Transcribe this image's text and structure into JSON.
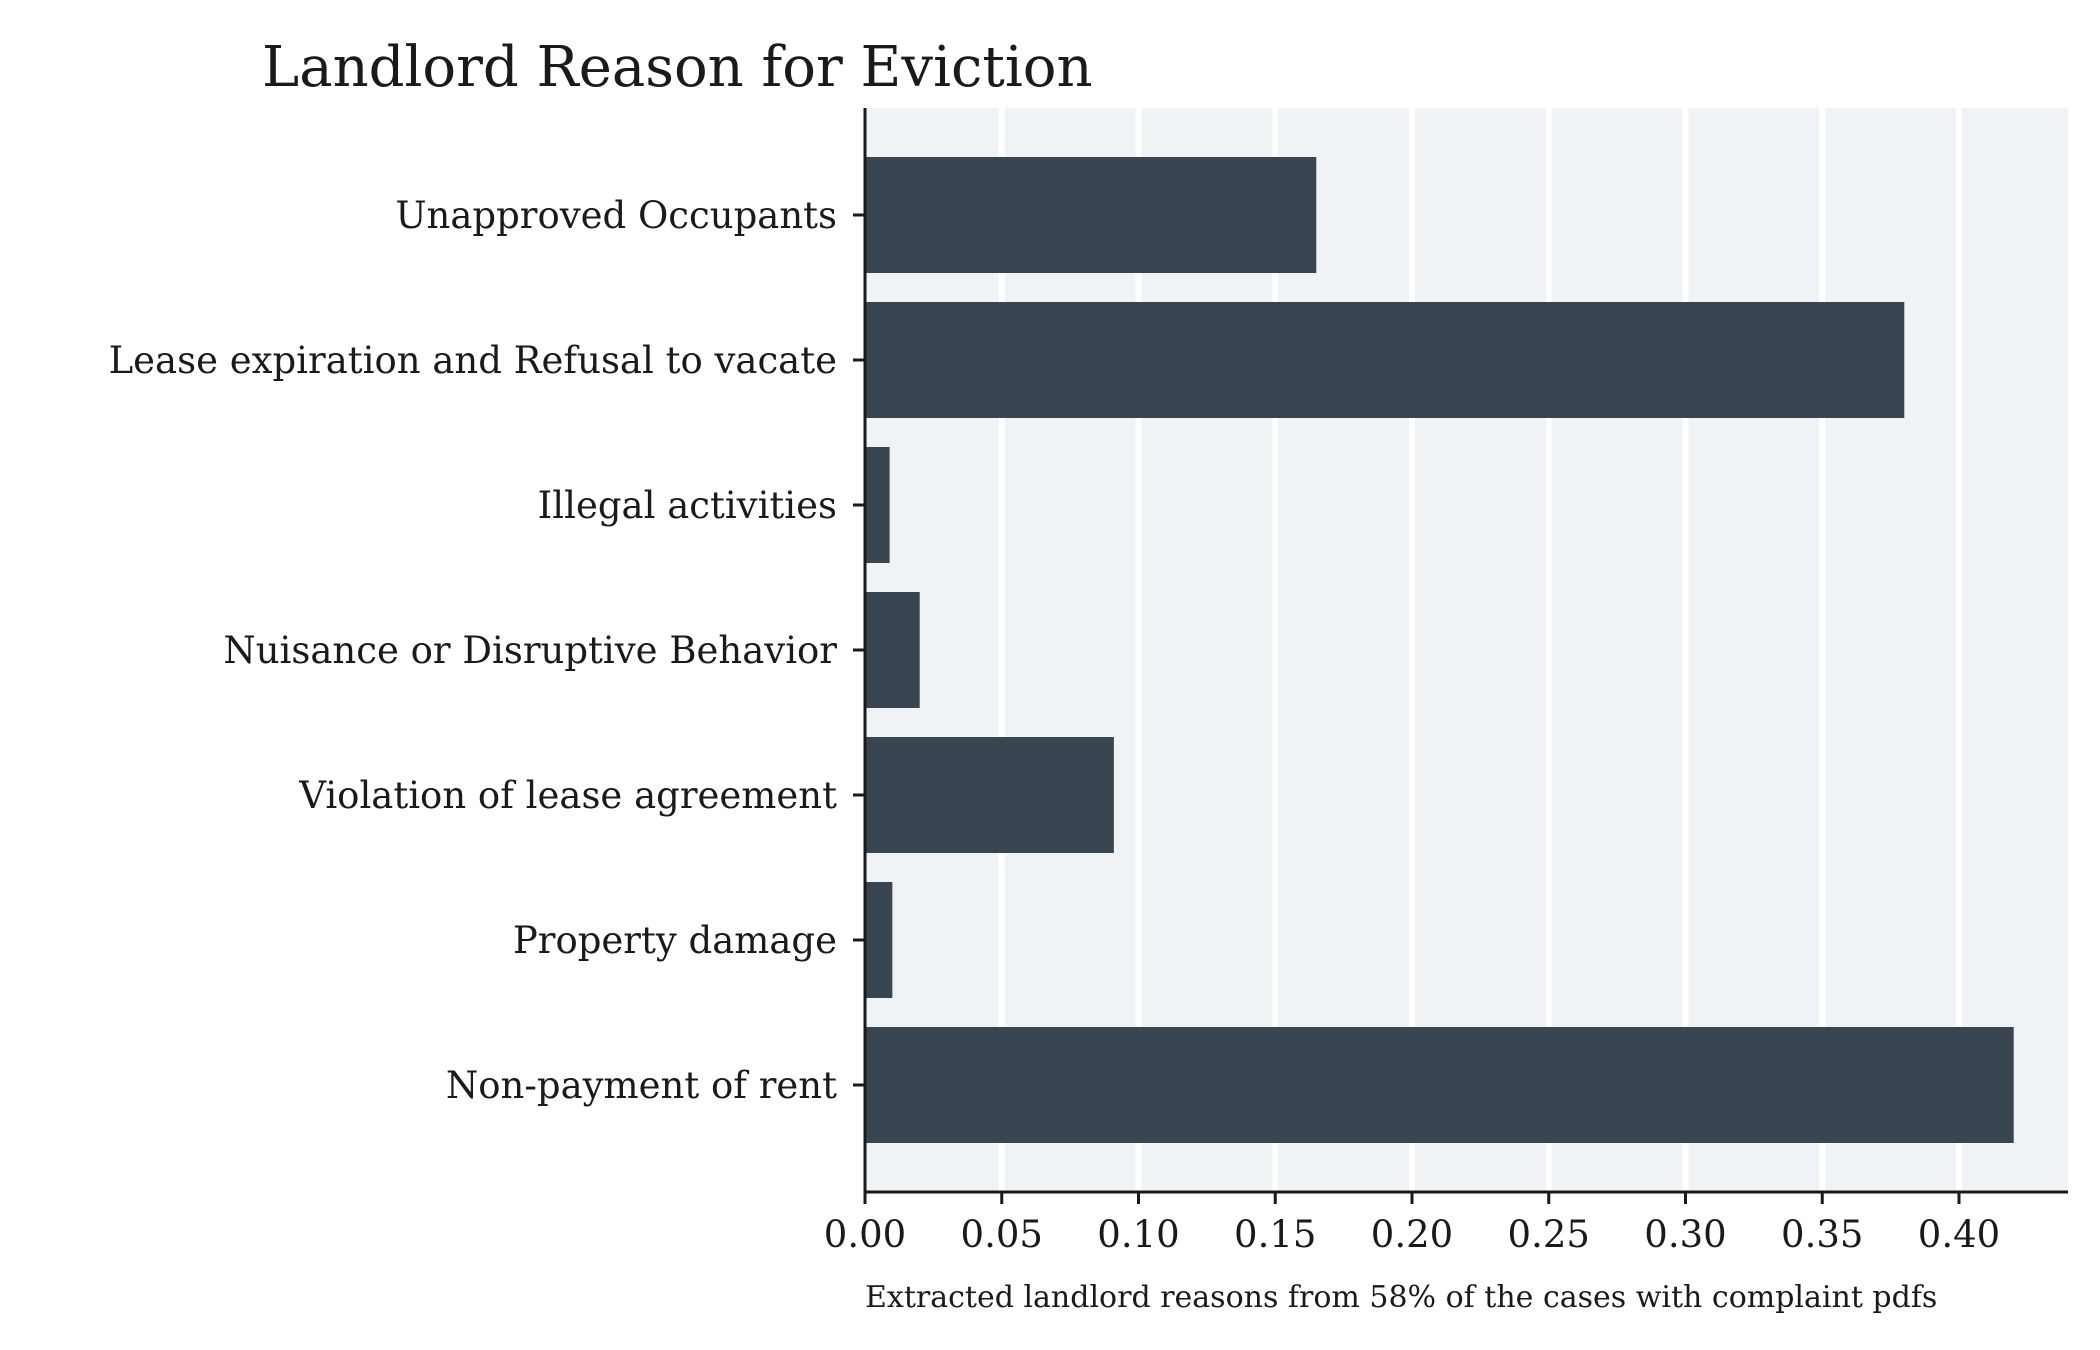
{
  "chart_data": {
    "type": "bar",
    "orientation": "horizontal",
    "title": "Landlord Reason for Eviction",
    "note": "Extracted landlord reasons from 58% of the cases with complaint pdfs",
    "xlabel": "",
    "ylabel": "",
    "xlim": [
      0,
      0.44
    ],
    "xticks": [
      0.0,
      0.05,
      0.1,
      0.15,
      0.2,
      0.25,
      0.3,
      0.35,
      0.4
    ],
    "xtick_labels": [
      "0.00",
      "0.05",
      "0.10",
      "0.15",
      "0.20",
      "0.25",
      "0.30",
      "0.35",
      "0.40"
    ],
    "categories": [
      "Unapproved Occupants",
      "Lease expiration and Refusal to vacate",
      "Illegal activities",
      "Nuisance or Disruptive Behavior",
      "Violation of lease agreement",
      "Property damage",
      "Non-payment of rent"
    ],
    "values": [
      0.165,
      0.38,
      0.009,
      0.02,
      0.091,
      0.01,
      0.42
    ],
    "grid": "vertical",
    "colors": {
      "bar": "#394651",
      "plot_background": "#eff3f6",
      "grid": "#ffffff",
      "axis": "#1a1a1a"
    }
  }
}
